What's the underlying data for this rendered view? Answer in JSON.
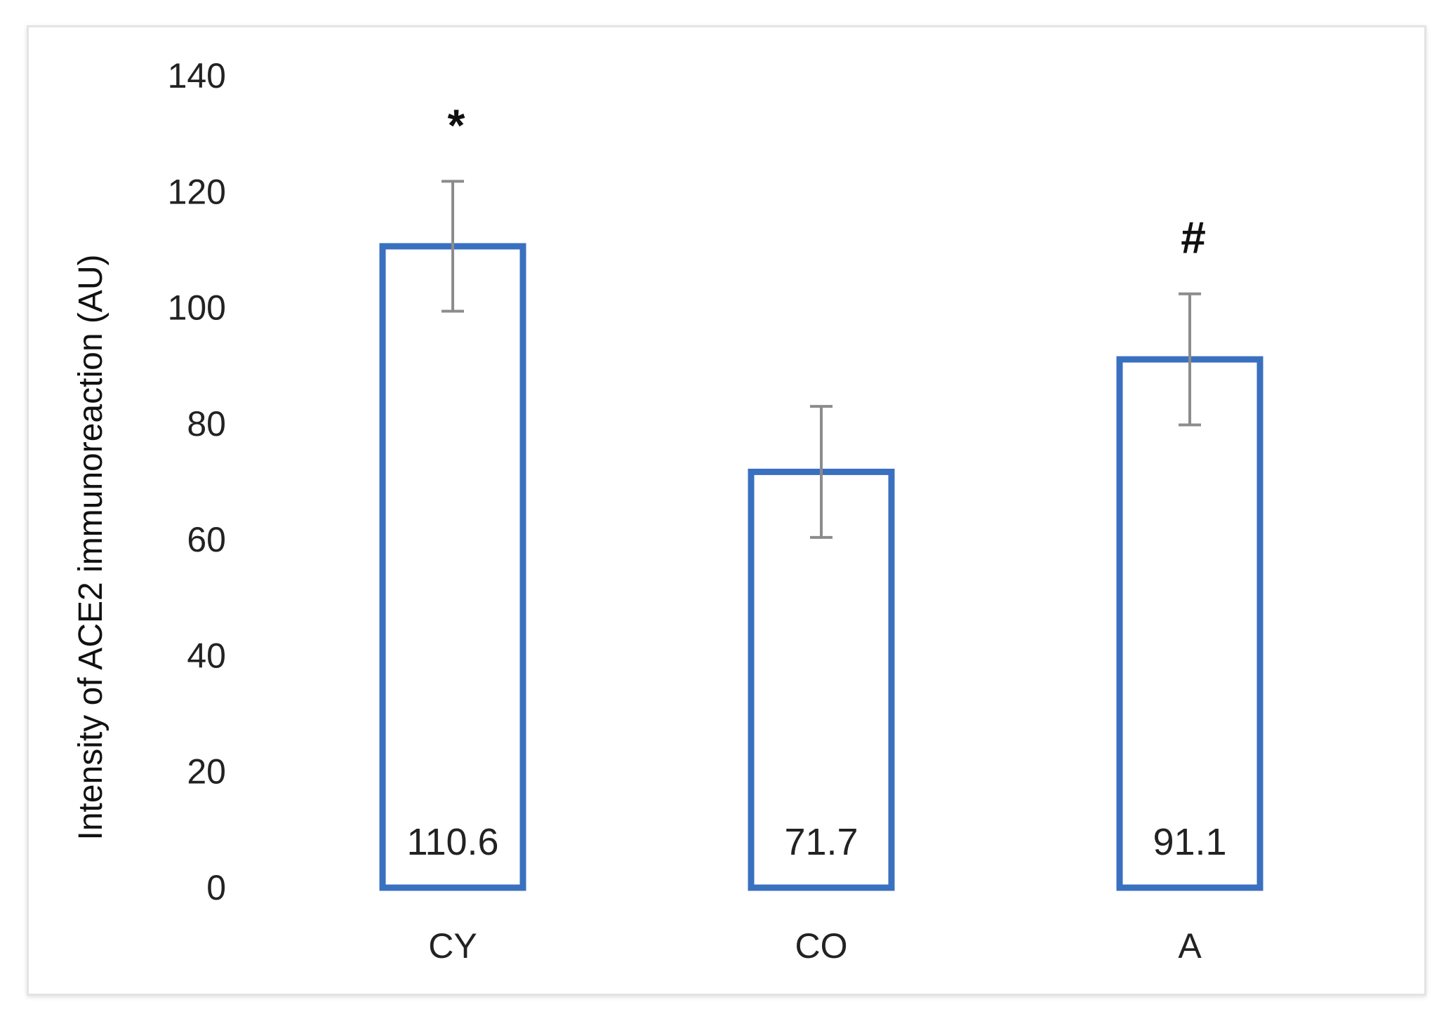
{
  "chart_data": {
    "type": "bar",
    "title": "",
    "xlabel": "",
    "ylabel": "Intensity of ACE2 immunoreaction (AU)",
    "ylim": [
      0,
      140
    ],
    "yticks": [
      0,
      20,
      40,
      60,
      80,
      100,
      120,
      140
    ],
    "grid": false,
    "categories": [
      "CY",
      "CO",
      "A"
    ],
    "values": [
      110.6,
      71.7,
      91.1
    ],
    "data_labels": [
      "110.6",
      "71.7",
      "91.1"
    ],
    "error_bars": [
      11.2,
      11.3,
      11.3
    ],
    "annotations": [
      "*",
      "",
      "#"
    ],
    "colors": {
      "bar_outline": "#3a70c0",
      "error_bar": "#8c8c8c"
    }
  }
}
